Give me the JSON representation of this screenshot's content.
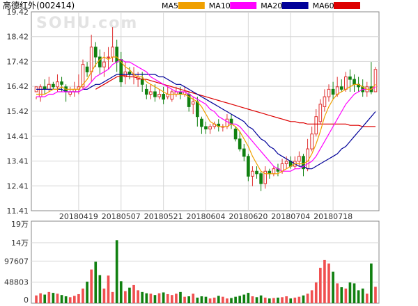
{
  "chart_data": {
    "type": "candlestick",
    "title": "高德红外(002414)",
    "watermark": "SOHU.com",
    "legend": [
      {
        "name": "MA5",
        "color": "#f0a000"
      },
      {
        "name": "MA10",
        "color": "#ff00ff"
      },
      {
        "name": "MA20",
        "color": "#000099"
      },
      {
        "name": "MA60",
        "color": "#dd0000"
      }
    ],
    "price_axis": {
      "ylim": [
        11.41,
        19.42
      ],
      "ticks": [
        "19.42",
        "18.42",
        "17.42",
        "16.42",
        "15.42",
        "14.41",
        "13.41",
        "12.41",
        "11.41"
      ]
    },
    "volume_axis": {
      "ylim": [
        0,
        190000
      ],
      "ticks": [
        {
          "label": "19万",
          "value": 190000
        },
        {
          "label": "14万",
          "value": 140000
        },
        {
          "label": "97607",
          "value": 97607
        },
        {
          "label": "48803",
          "value": 48803
        },
        {
          "label": "0",
          "value": 0
        }
      ]
    },
    "x_ticks": [
      {
        "label": "20180419",
        "index": 10
      },
      {
        "label": "20180507",
        "index": 20
      },
      {
        "label": "20180521",
        "index": 30
      },
      {
        "label": "20180604",
        "index": 40
      },
      {
        "label": "20180620",
        "index": 50
      },
      {
        "label": "20180704",
        "index": 60
      },
      {
        "label": "20180718",
        "index": 70
      }
    ],
    "up_color": "#e03030",
    "down_color": "#108010",
    "ohlc": [
      [
        16.2,
        16.4,
        16.0,
        15.9
      ],
      [
        16.0,
        16.4,
        16.5,
        15.8
      ],
      [
        16.4,
        16.3,
        16.7,
        16.1
      ],
      [
        16.3,
        16.5,
        16.8,
        16.2
      ],
      [
        16.5,
        16.4,
        16.6,
        16.3
      ],
      [
        16.4,
        16.6,
        16.9,
        16.2
      ],
      [
        16.6,
        16.5,
        16.8,
        16.2
      ],
      [
        16.4,
        16.2,
        16.5,
        15.8
      ],
      [
        16.1,
        16.2,
        16.4,
        16.0
      ],
      [
        16.2,
        16.3,
        16.6,
        16.0
      ],
      [
        16.3,
        16.4,
        16.9,
        16.1
      ],
      [
        16.4,
        17.3,
        17.5,
        16.3
      ],
      [
        17.2,
        17.0,
        17.4,
        16.8
      ],
      [
        17.0,
        18.0,
        18.5,
        16.6
      ],
      [
        18.0,
        17.6,
        18.2,
        17.2
      ],
      [
        17.6,
        17.2,
        17.9,
        16.9
      ],
      [
        17.2,
        17.4,
        17.8,
        16.8
      ],
      [
        17.6,
        17.6,
        18.0,
        17.1
      ],
      [
        17.6,
        18.0,
        18.8,
        17.4
      ],
      [
        18.0,
        17.4,
        18.3,
        17.0
      ],
      [
        17.5,
        16.6,
        17.8,
        16.4
      ],
      [
        16.8,
        17.0,
        17.4,
        16.5
      ],
      [
        17.0,
        16.9,
        17.2,
        16.7
      ],
      [
        16.9,
        16.9,
        17.2,
        16.5
      ],
      [
        16.7,
        16.8,
        17.0,
        16.4
      ],
      [
        16.7,
        16.5,
        17.0,
        16.2
      ],
      [
        16.3,
        16.1,
        16.5,
        15.9
      ],
      [
        16.1,
        16.2,
        16.5,
        15.9
      ],
      [
        16.2,
        16.0,
        16.5,
        15.8
      ],
      [
        16.0,
        16.1,
        16.3,
        15.9
      ],
      [
        16.1,
        15.9,
        16.4,
        15.7
      ],
      [
        16.0,
        16.1,
        16.4,
        15.9
      ],
      [
        15.9,
        16.2,
        16.3,
        15.8
      ],
      [
        16.1,
        16.2,
        16.4,
        16.0
      ],
      [
        16.2,
        16.1,
        16.4,
        15.9
      ],
      [
        16.1,
        16.2,
        16.4,
        16.0
      ],
      [
        16.1,
        15.6,
        16.2,
        15.4
      ],
      [
        15.7,
        15.8,
        16.0,
        15.3
      ],
      [
        15.8,
        15.2,
        16.0,
        14.8
      ],
      [
        15.1,
        14.8,
        15.2,
        14.5
      ],
      [
        14.8,
        14.7,
        15.0,
        14.5
      ],
      [
        14.7,
        14.8,
        14.9,
        14.5
      ],
      [
        14.8,
        14.9,
        15.0,
        14.7
      ],
      [
        14.9,
        14.8,
        15.1,
        14.6
      ],
      [
        14.8,
        14.8,
        14.9,
        14.6
      ],
      [
        14.8,
        15.1,
        15.3,
        14.7
      ],
      [
        15.1,
        14.9,
        15.3,
        14.7
      ],
      [
        14.7,
        14.3,
        14.8,
        14.2
      ],
      [
        14.3,
        13.9,
        14.6,
        13.8
      ],
      [
        13.9,
        13.6,
        14.1,
        13.4
      ],
      [
        13.6,
        12.8,
        13.7,
        12.6
      ],
      [
        12.8,
        13.0,
        13.2,
        12.4
      ],
      [
        13.0,
        12.9,
        13.2,
        12.7
      ],
      [
        12.9,
        12.5,
        13.0,
        12.2
      ],
      [
        12.5,
        13.0,
        13.2,
        12.3
      ],
      [
        13.0,
        12.9,
        13.1,
        12.7
      ],
      [
        12.9,
        13.1,
        13.2,
        12.8
      ],
      [
        13.1,
        13.0,
        13.3,
        12.8
      ],
      [
        13.0,
        13.3,
        13.5,
        12.9
      ],
      [
        13.3,
        13.4,
        13.6,
        13.1
      ],
      [
        13.4,
        13.2,
        13.6,
        13.1
      ],
      [
        13.2,
        13.4,
        13.6,
        13.1
      ],
      [
        13.4,
        13.6,
        13.8,
        13.2
      ],
      [
        13.6,
        13.1,
        13.7,
        12.8
      ],
      [
        13.1,
        13.9,
        14.3,
        13.0
      ],
      [
        13.9,
        14.5,
        14.8,
        13.8
      ],
      [
        14.5,
        15.2,
        15.5,
        14.4
      ],
      [
        15.0,
        15.7,
        15.9,
        14.9
      ],
      [
        15.6,
        16.0,
        16.3,
        15.4
      ],
      [
        16.0,
        16.3,
        16.5,
        15.8
      ],
      [
        16.3,
        16.1,
        16.6,
        15.9
      ],
      [
        16.1,
        16.4,
        16.8,
        16.0
      ],
      [
        16.4,
        16.3,
        16.7,
        16.2
      ],
      [
        16.3,
        16.8,
        17.0,
        16.2
      ],
      [
        16.8,
        16.7,
        17.1,
        16.2
      ],
      [
        16.7,
        16.5,
        16.9,
        16.2
      ],
      [
        16.5,
        16.4,
        16.8,
        16.2
      ],
      [
        16.4,
        16.2,
        16.7,
        16.0
      ],
      [
        16.2,
        16.4,
        16.6,
        16.0
      ],
      [
        16.4,
        16.2,
        17.4,
        16.1
      ],
      [
        16.2,
        17.1,
        17.2,
        16.2
      ]
    ],
    "volume": [
      18000,
      23000,
      20000,
      26000,
      24000,
      22000,
      19000,
      16000,
      14000,
      17000,
      21000,
      34000,
      50000,
      78000,
      96000,
      65000,
      34000,
      64000,
      26000,
      146000,
      51000,
      28000,
      36000,
      42000,
      30000,
      26000,
      23000,
      22000,
      19000,
      23000,
      25000,
      21000,
      19000,
      22000,
      26000,
      15000,
      16000,
      22000,
      13000,
      16000,
      15000,
      11000,
      13000,
      17000,
      15000,
      11000,
      12000,
      15000,
      17000,
      20000,
      24000,
      16000,
      14000,
      18000,
      13000,
      11000,
      12000,
      13000,
      14000,
      16000,
      11000,
      13000,
      15000,
      18000,
      22000,
      30000,
      48000,
      82000,
      100000,
      92000,
      73000,
      46000,
      37000,
      34000,
      48000,
      46000,
      30000,
      34000,
      22000,
      92000,
      38000
    ],
    "ma5": [
      16.1,
      16.1,
      16.1,
      16.2,
      16.3,
      16.3,
      16.4,
      16.3,
      16.3,
      16.3,
      16.3,
      16.5,
      16.7,
      17.0,
      17.3,
      17.5,
      17.6,
      17.5,
      17.6,
      17.6,
      17.4,
      17.2,
      17.1,
      16.9,
      16.8,
      16.8,
      16.6,
      16.5,
      16.4,
      16.3,
      16.2,
      16.1,
      16.1,
      16.1,
      16.1,
      16.1,
      16.0,
      15.9,
      15.8,
      15.6,
      15.3,
      15.0,
      14.9,
      14.8,
      14.8,
      14.8,
      14.9,
      14.8,
      14.6,
      14.3,
      14.0,
      13.6,
      13.3,
      13.0,
      12.9,
      12.9,
      12.9,
      12.9,
      13.0,
      13.1,
      13.2,
      13.3,
      13.3,
      13.3,
      13.4,
      13.7,
      14.1,
      14.6,
      15.2,
      15.6,
      15.9,
      16.1,
      16.2,
      16.3,
      16.4,
      16.5,
      16.5,
      16.4,
      16.3,
      16.3,
      16.5
    ],
    "ma10": [
      16.0,
      16.0,
      16.0,
      16.1,
      16.1,
      16.2,
      16.2,
      16.2,
      16.2,
      16.2,
      16.2,
      16.3,
      16.4,
      16.6,
      16.8,
      16.9,
      17.0,
      17.1,
      17.3,
      17.4,
      17.5,
      17.4,
      17.4,
      17.3,
      17.2,
      17.1,
      17.0,
      16.8,
      16.7,
      16.6,
      16.5,
      16.4,
      16.3,
      16.2,
      16.2,
      16.2,
      16.1,
      16.0,
      15.9,
      15.8,
      15.7,
      15.5,
      15.4,
      15.2,
      15.1,
      15.0,
      14.9,
      14.9,
      14.8,
      14.6,
      14.4,
      14.2,
      14.0,
      13.8,
      13.6,
      13.4,
      13.2,
      13.1,
      13.0,
      13.0,
      13.0,
      13.1,
      13.1,
      13.2,
      13.3,
      13.4,
      13.6,
      13.9,
      14.2,
      14.5,
      14.8,
      15.1,
      15.4,
      15.7,
      15.9,
      16.1,
      16.2,
      16.3,
      16.3,
      16.3,
      16.4
    ],
    "ma20": [
      16.3,
      16.3,
      16.3,
      16.3,
      16.3,
      16.3,
      16.3,
      16.2,
      16.2,
      16.2,
      16.2,
      16.3,
      16.3,
      16.4,
      16.5,
      16.5,
      16.6,
      16.7,
      16.8,
      16.9,
      16.9,
      16.9,
      16.9,
      16.9,
      16.9,
      16.9,
      16.9,
      16.9,
      16.9,
      16.8,
      16.8,
      16.7,
      16.6,
      16.5,
      16.5,
      16.4,
      16.3,
      16.2,
      16.1,
      16.0,
      15.9,
      15.8,
      15.7,
      15.6,
      15.5,
      15.4,
      15.3,
      15.2,
      15.1,
      15.0,
      14.8,
      14.7,
      14.5,
      14.3,
      14.2,
      14.0,
      13.9,
      13.7,
      13.6,
      13.5,
      13.4,
      13.3,
      13.2,
      13.2,
      13.1,
      13.1,
      13.2,
      13.3,
      13.4,
      13.5,
      13.6,
      13.7,
      13.9,
      14.0,
      14.2,
      14.4,
      14.6,
      14.8,
      15.0,
      15.2,
      15.4
    ],
    "ma60": [
      null,
      null,
      null,
      null,
      null,
      null,
      null,
      null,
      null,
      null,
      null,
      null,
      null,
      null,
      16.3,
      16.4,
      16.5,
      16.6,
      16.7,
      16.8,
      16.85,
      16.85,
      16.8,
      16.8,
      16.75,
      16.7,
      16.7,
      16.65,
      16.6,
      16.55,
      16.5,
      16.45,
      16.4,
      16.35,
      16.3,
      16.25,
      16.2,
      16.15,
      16.1,
      16.05,
      16.0,
      15.95,
      15.9,
      15.85,
      15.8,
      15.75,
      15.7,
      15.65,
      15.6,
      15.55,
      15.5,
      15.45,
      15.4,
      15.35,
      15.3,
      15.25,
      15.2,
      15.15,
      15.1,
      15.05,
      15.0,
      15.0,
      14.95,
      14.95,
      14.9,
      14.9,
      14.9,
      14.9,
      14.9,
      14.9,
      14.9,
      14.9,
      14.9,
      14.9,
      14.85,
      14.85,
      14.85,
      14.8,
      14.8,
      14.8,
      14.8
    ]
  }
}
